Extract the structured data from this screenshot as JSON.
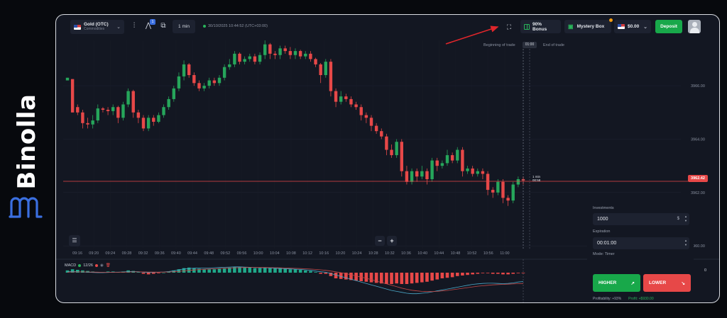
{
  "brand": {
    "name": "Binolla",
    "logo_icon": "binolla-logo-icon"
  },
  "topbar": {
    "asset_name": "Gold (OTC)",
    "asset_category": "Commodities",
    "asset_flag_icon": "us-flag-icon",
    "indicators_icon": "indicators-icon",
    "drawing_icon": "drawing-tools-icon",
    "drawing_badge": "1",
    "chart_type_icon": "chart-type-icon",
    "timeframe": "1 min",
    "server_time": "30/10/2025 10:44:52 (UTC+03:00)",
    "fullscreen_icon": "fullscreen-icon",
    "bonus_label": "90% Bonus",
    "mystery_label": "Mystery Box",
    "balance": "$0.00",
    "deposit_label": "Deposit"
  },
  "trade_window": {
    "beginning_label": "Beginning of trade",
    "end_label": "End of trade",
    "time_badge": "01:00"
  },
  "chart": {
    "price_tag": "3962.42",
    "timer_line1": "1 min",
    "timer_line2": "00:58",
    "macd_label": "MACD",
    "macd_params": "12/26",
    "macd_zero": "0",
    "zoom_out": "−",
    "zoom_in": "+",
    "settings_icon": "chart-settings-icon"
  },
  "colors": {
    "bull": "#26a65b",
    "bear": "#e74848",
    "accent_green": "#18a84a",
    "panel": "#1d2230",
    "background": "#131722"
  },
  "chart_data": {
    "type": "candlestick",
    "y_ticks": [
      "3966.00",
      "3964.00",
      "3962.00",
      "3960.00"
    ],
    "ylim": [
      3959.9,
      3967.7
    ],
    "x_ticks": [
      "09:16",
      "09:20",
      "09:24",
      "09:28",
      "09:32",
      "09:36",
      "09:40",
      "09:44",
      "09:48",
      "09:52",
      "09:56",
      "10:00",
      "10:04",
      "10:08",
      "10:12",
      "10:16",
      "10:20",
      "10:24",
      "10:28",
      "10:32",
      "10:36",
      "10:40",
      "10:44",
      "10:48",
      "10:52",
      "10:56",
      "11:00"
    ],
    "candles": [
      [
        3966.2,
        3966.3,
        3966.1,
        3966.25
      ],
      [
        3966.25,
        3965.0,
        3965.0,
        3966.3
      ],
      [
        3965.2,
        3965.0,
        3965.3,
        3964.9
      ],
      [
        3965.0,
        3964.6,
        3965.1,
        3964.4
      ],
      [
        3964.6,
        3964.55,
        3964.8,
        3964.4
      ],
      [
        3964.55,
        3964.7,
        3964.9,
        3964.4
      ],
      [
        3964.7,
        3965.15,
        3965.3,
        3964.6
      ],
      [
        3965.15,
        3965.1,
        3965.2,
        3965.0
      ],
      [
        3965.1,
        3965.05,
        3965.2,
        3964.9
      ],
      [
        3965.05,
        3965.2,
        3965.3,
        3964.9
      ],
      [
        3965.2,
        3964.8,
        3965.25,
        3964.6
      ],
      [
        3964.8,
        3965.3,
        3965.4,
        3964.7
      ],
      [
        3965.3,
        3965.8,
        3965.9,
        3965.2
      ],
      [
        3965.8,
        3965.0,
        3965.85,
        3964.8
      ],
      [
        3965.0,
        3964.8,
        3965.1,
        3964.6
      ],
      [
        3964.8,
        3964.4,
        3964.9,
        3964.3
      ],
      [
        3964.4,
        3964.8,
        3964.9,
        3964.3
      ],
      [
        3964.8,
        3964.65,
        3964.9,
        3964.5
      ],
      [
        3964.65,
        3964.9,
        3965.0,
        3964.6
      ],
      [
        3964.9,
        3965.2,
        3965.3,
        3964.8
      ],
      [
        3965.2,
        3965.5,
        3965.6,
        3965.1
      ],
      [
        3965.5,
        3965.9,
        3966.0,
        3965.4
      ],
      [
        3965.9,
        3966.35,
        3966.5,
        3965.8
      ],
      [
        3966.35,
        3966.8,
        3966.95,
        3966.2
      ],
      [
        3966.8,
        3966.4,
        3966.85,
        3966.3
      ],
      [
        3966.4,
        3966.1,
        3966.5,
        3966.0
      ],
      [
        3966.1,
        3965.9,
        3966.2,
        3965.8
      ],
      [
        3965.9,
        3966.0,
        3966.1,
        3965.8
      ],
      [
        3966.0,
        3966.2,
        3966.3,
        3965.9
      ],
      [
        3966.2,
        3966.1,
        3966.3,
        3966.0
      ],
      [
        3966.1,
        3966.3,
        3966.4,
        3966.0
      ],
      [
        3966.3,
        3966.7,
        3966.8,
        3966.2
      ],
      [
        3966.7,
        3966.8,
        3967.0,
        3966.6
      ],
      [
        3966.8,
        3967.2,
        3967.3,
        3966.7
      ],
      [
        3967.2,
        3966.9,
        3967.25,
        3966.8
      ],
      [
        3966.9,
        3967.0,
        3967.1,
        3966.8
      ],
      [
        3967.0,
        3967.1,
        3967.2,
        3966.9
      ],
      [
        3967.1,
        3966.9,
        3967.2,
        3966.8
      ],
      [
        3966.9,
        3967.15,
        3967.25,
        3966.8
      ],
      [
        3967.15,
        3967.55,
        3967.7,
        3967.0
      ],
      [
        3967.55,
        3967.2,
        3967.6,
        3967.0
      ],
      [
        3967.2,
        3967.15,
        3967.3,
        3967.0
      ],
      [
        3967.15,
        3967.4,
        3967.5,
        3967.0
      ],
      [
        3967.4,
        3967.3,
        3967.5,
        3967.2
      ],
      [
        3967.3,
        3967.15,
        3967.45,
        3967.0
      ],
      [
        3967.15,
        3967.3,
        3967.4,
        3967.0
      ],
      [
        3967.3,
        3967.1,
        3967.35,
        3967.0
      ],
      [
        3967.1,
        3967.2,
        3967.3,
        3967.0
      ],
      [
        3967.2,
        3967.0,
        3967.3,
        3966.9
      ],
      [
        3967.0,
        3966.8,
        3967.05,
        3966.7
      ],
      [
        3966.8,
        3966.4,
        3966.85,
        3966.1
      ],
      [
        3966.4,
        3966.9,
        3967.0,
        3966.3
      ],
      [
        3966.9,
        3965.8,
        3967.0,
        3965.6
      ],
      [
        3965.8,
        3965.4,
        3965.9,
        3965.2
      ],
      [
        3965.4,
        3965.6,
        3965.8,
        3965.3
      ],
      [
        3965.6,
        3965.5,
        3965.7,
        3965.4
      ],
      [
        3965.5,
        3965.3,
        3965.6,
        3965.2
      ],
      [
        3965.3,
        3965.2,
        3965.4,
        3965.1
      ],
      [
        3965.2,
        3964.9,
        3965.3,
        3964.7
      ],
      [
        3964.9,
        3964.8,
        3965.0,
        3964.6
      ],
      [
        3964.8,
        3964.5,
        3964.9,
        3964.3
      ],
      [
        3964.5,
        3964.3,
        3964.6,
        3964.2
      ],
      [
        3964.3,
        3964.1,
        3964.4,
        3964.0
      ],
      [
        3964.1,
        3963.6,
        3964.2,
        3963.4
      ],
      [
        3963.6,
        3963.4,
        3963.8,
        3963.3
      ],
      [
        3963.4,
        3963.9,
        3964.0,
        3963.3
      ],
      [
        3963.9,
        3962.8,
        3964.0,
        3962.6
      ],
      [
        3962.8,
        3962.4,
        3963.0,
        3962.3
      ],
      [
        3962.4,
        3962.8,
        3962.9,
        3962.3
      ],
      [
        3962.8,
        3962.6,
        3962.9,
        3962.4
      ],
      [
        3962.6,
        3962.8,
        3963.0,
        3962.5
      ],
      [
        3962.8,
        3962.5,
        3962.9,
        3962.3
      ],
      [
        3962.5,
        3963.2,
        3963.3,
        3962.4
      ],
      [
        3963.2,
        3963.0,
        3963.3,
        3962.8
      ],
      [
        3963.0,
        3963.1,
        3963.2,
        3962.9
      ],
      [
        3963.1,
        3963.4,
        3963.6,
        3963.0
      ],
      [
        3963.4,
        3963.2,
        3963.5,
        3963.1
      ],
      [
        3963.2,
        3963.6,
        3963.7,
        3963.1
      ],
      [
        3963.6,
        3962.8,
        3963.7,
        3962.6
      ],
      [
        3962.8,
        3962.9,
        3963.0,
        3962.7
      ],
      [
        3962.9,
        3962.7,
        3963.0,
        3962.6
      ],
      [
        3962.7,
        3962.8,
        3962.9,
        3962.6
      ],
      [
        3962.8,
        3962.7,
        3962.9,
        3962.5
      ],
      [
        3962.7,
        3962.1,
        3962.8,
        3961.9
      ],
      [
        3962.1,
        3962.0,
        3962.2,
        3961.8
      ],
      [
        3962.0,
        3962.4,
        3962.5,
        3961.9
      ],
      [
        3962.4,
        3961.8,
        3962.5,
        3961.6
      ],
      [
        3961.8,
        3961.7,
        3961.9,
        3961.5
      ],
      [
        3961.7,
        3962.3,
        3962.4,
        3961.6
      ],
      [
        3962.3,
        3962.5,
        3962.6,
        3962.2
      ],
      [
        3962.5,
        3962.45,
        3962.6,
        3962.3
      ]
    ],
    "current_price": 3962.42,
    "macd": {
      "histogram": [
        0.2,
        0.3,
        0.25,
        0.2,
        0.15,
        0.1,
        0.05,
        0.05,
        0.1,
        0.1,
        0.05,
        0.1,
        0.2,
        0.15,
        0.05,
        -0.1,
        -0.15,
        -0.1,
        -0.05,
        0.0,
        0.1,
        0.2,
        0.3,
        0.4,
        0.45,
        0.4,
        0.35,
        0.3,
        0.3,
        0.3,
        0.35,
        0.4,
        0.45,
        0.5,
        0.5,
        0.45,
        0.45,
        0.4,
        0.4,
        0.45,
        0.45,
        0.4,
        0.4,
        0.35,
        0.3,
        0.3,
        0.25,
        0.2,
        0.15,
        0.05,
        -0.1,
        -0.1,
        -0.3,
        -0.5,
        -0.55,
        -0.6,
        -0.65,
        -0.7,
        -0.75,
        -0.8,
        -0.85,
        -0.9,
        -0.95,
        -1.0,
        -1.0,
        -0.95,
        -1.0,
        -1.0,
        -0.95,
        -0.9,
        -0.85,
        -0.8,
        -0.7,
        -0.6,
        -0.5,
        -0.45,
        -0.4,
        -0.3,
        -0.25,
        -0.2,
        -0.15,
        -0.1,
        -0.05,
        -0.05,
        -0.1,
        -0.1,
        -0.15,
        -0.15,
        -0.1,
        -0.05,
        -0.05
      ],
      "macd_line": [
        0.2,
        0.25,
        0.2,
        0.15,
        0.1,
        0.05,
        0.0,
        0.0,
        0.05,
        0.1,
        0.1,
        0.15,
        0.25,
        0.25,
        0.2,
        0.1,
        0.05,
        0.05,
        0.1,
        0.15,
        0.25,
        0.4,
        0.6,
        0.8,
        0.9,
        0.95,
        1.0,
        1.0,
        1.0,
        1.05,
        1.1,
        1.15,
        1.2,
        1.25,
        1.25,
        1.2,
        1.15,
        1.1,
        1.05,
        1.05,
        1.0,
        0.95,
        0.9,
        0.85,
        0.8,
        0.75,
        0.7,
        0.6,
        0.5,
        0.35,
        0.2,
        0.1,
        -0.2,
        -0.5,
        -0.8,
        -1.1,
        -1.4,
        -1.7,
        -2.0,
        -2.3,
        -2.6,
        -2.9,
        -3.2,
        -3.5,
        -3.8,
        -4.0,
        -4.2,
        -4.4,
        -4.5,
        -4.5,
        -4.4,
        -4.3,
        -4.1,
        -3.9,
        -3.7,
        -3.5,
        -3.3,
        -3.1,
        -2.9,
        -2.7,
        -2.5,
        -2.4,
        -2.3,
        -2.25,
        -2.25,
        -2.3,
        -2.35,
        -2.3,
        -2.2,
        -2.0,
        -1.9
      ],
      "signal_line": [
        0.1,
        0.15,
        0.17,
        0.17,
        0.15,
        0.12,
        0.1,
        0.08,
        0.07,
        0.08,
        0.09,
        0.1,
        0.13,
        0.16,
        0.17,
        0.16,
        0.14,
        0.12,
        0.11,
        0.12,
        0.15,
        0.2,
        0.28,
        0.38,
        0.48,
        0.57,
        0.66,
        0.73,
        0.79,
        0.84,
        0.89,
        0.94,
        0.99,
        1.04,
        1.08,
        1.11,
        1.12,
        1.12,
        1.11,
        1.1,
        1.08,
        1.06,
        1.03,
        1.0,
        0.96,
        0.92,
        0.88,
        0.83,
        0.77,
        0.7,
        0.6,
        0.5,
        0.35,
        0.18,
        0.0,
        -0.2,
        -0.45,
        -0.7,
        -0.95,
        -1.2,
        -1.5,
        -1.8,
        -2.1,
        -2.4,
        -2.7,
        -3.0,
        -3.3,
        -3.55,
        -3.75,
        -3.9,
        -4.0,
        -4.05,
        -4.05,
        -4.0,
        -3.9,
        -3.8,
        -3.65,
        -3.5,
        -3.35,
        -3.2,
        -3.05,
        -2.9,
        -2.8,
        -2.7,
        -2.6,
        -2.55,
        -2.5,
        -2.45,
        -2.4,
        -2.35,
        -2.3
      ]
    }
  },
  "order": {
    "investments_label": "Investments",
    "investment_value": "1000",
    "currency": "$",
    "expiration_label": "Expiration",
    "expiration_value": "00:01:00",
    "mode_label": "Mode: Timer",
    "higher_label": "HIGHER",
    "higher_arrow": "↗",
    "lower_label": "LOWER",
    "lower_arrow": "↘",
    "profitability": "Profitability: +93%",
    "profit": "Profit: +$930.00"
  }
}
